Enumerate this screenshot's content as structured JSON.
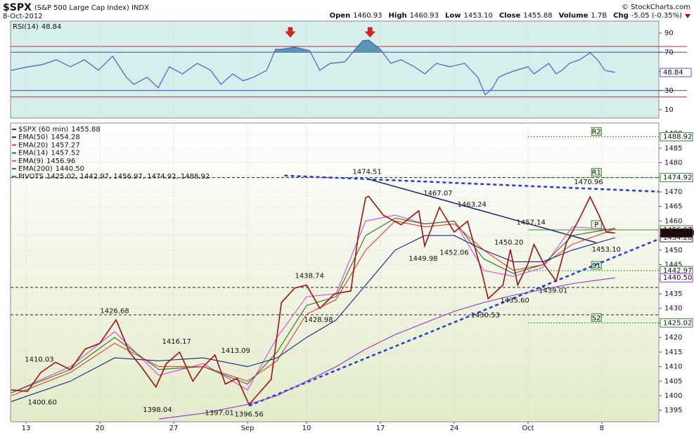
{
  "header": {
    "symbol": "$SPX",
    "name": "(S&P 500 Large Cap Index) INDX",
    "date": "8-Oct-2012",
    "copyright": "© StockCharts.com",
    "quote": [
      {
        "label": "Open",
        "value": "1460.93"
      },
      {
        "label": "High",
        "value": "1460.93"
      },
      {
        "label": "Low",
        "value": "1453.10"
      },
      {
        "label": "Close",
        "value": "1455.88"
      },
      {
        "label": "Volume",
        "value": "1.7B"
      },
      {
        "label": "Chg",
        "value": "-5.05 (-0.35%)"
      }
    ]
  },
  "chart_data": [
    {
      "type": "line",
      "name": "RSI(14)",
      "last_label": "48.84",
      "color": "#4a5fc1",
      "fill_color": "#5b97b3",
      "xlim": [
        -1.05,
        42.86
      ],
      "ylim": [
        1.2,
        102.5
      ],
      "yticks": [
        10,
        30,
        50,
        70,
        90
      ],
      "levels": [
        70,
        30
      ],
      "bands": [
        76,
        23.3
      ],
      "signal_x": [
        17.9,
        23.3
      ],
      "x": [
        -1,
        0.14,
        1.1,
        2.05,
        3,
        3.95,
        4.9,
        5.86,
        6.8,
        7.3,
        8.2,
        8.95,
        9.7,
        10.6,
        11.6,
        12.5,
        13.2,
        14,
        14.7,
        15.4,
        16.3,
        16.9,
        17.3,
        18.2,
        19.2,
        19.9,
        20.6,
        21.6,
        22.3,
        22.8,
        23.2,
        24,
        24.7,
        25.4,
        26.3,
        27,
        27.8,
        28.7,
        29.7,
        30.6,
        31.1,
        31.6,
        32,
        32.5,
        33.2,
        34,
        34.4,
        35.4,
        35.9,
        36.3,
        36.8,
        37.5,
        38.2,
        38.7,
        39.2,
        39.9
      ],
      "values": [
        51.1,
        54.8,
        57,
        62.1,
        54.8,
        62.1,
        51.1,
        65.8,
        43.8,
        36.4,
        43.8,
        32.8,
        54.8,
        47.4,
        58.4,
        51.1,
        36.4,
        47.4,
        40.1,
        43.8,
        51.1,
        73.1,
        73.1,
        75.3,
        71.7,
        51.1,
        58.4,
        59.9,
        73.1,
        81.9,
        82.7,
        73.1,
        58.4,
        62.1,
        54.8,
        47.4,
        58.4,
        54.8,
        58.4,
        43.8,
        25.4,
        32.8,
        43.8,
        47.4,
        51.1,
        54.8,
        47.4,
        58.4,
        47.4,
        51.1,
        58.4,
        62.1,
        69.4,
        62.1,
        51.1,
        48.84
      ]
    },
    {
      "type": "line",
      "xlim": [
        -1.05,
        42.86
      ],
      "ylim": [
        1391.07,
        1493.65
      ],
      "grid": true,
      "xticks": [
        {
          "value": 0,
          "label": "13"
        },
        {
          "value": 5,
          "label": "20"
        },
        {
          "value": 10,
          "label": "27"
        },
        {
          "value": 15,
          "label": "Sep"
        },
        {
          "value": 19,
          "label": "10"
        },
        {
          "value": 24,
          "label": "17"
        },
        {
          "value": 29,
          "label": "24"
        },
        {
          "value": 34,
          "label": "Oct"
        },
        {
          "value": 39,
          "label": "8"
        }
      ],
      "yticks": [
        1395,
        1400,
        1405,
        1410,
        1415,
        1420,
        1425,
        1430,
        1435,
        1440,
        1445,
        1450,
        1455,
        1460,
        1465,
        1470,
        1475,
        1480,
        1485,
        1490
      ],
      "series": [
        {
          "name": "$SPX (60 min)",
          "last_label": "1455.88",
          "color": "#a01010",
          "tag": "fill",
          "x": [
            -1,
            0.1,
            1,
            2,
            3,
            4,
            5,
            6.1,
            7,
            7.8,
            8.8,
            9.5,
            10.4,
            11.3,
            12,
            12.8,
            13.5,
            14.3,
            15.1,
            15.8,
            16.6,
            17.3,
            18.2,
            19,
            19.9,
            20.9,
            22,
            22.5,
            23,
            23.2,
            24.2,
            25.4,
            26.6,
            27,
            28,
            29,
            29.9,
            30.9,
            31.3,
            32.3,
            32.8,
            33.3,
            34,
            34.4,
            35.1,
            35.9,
            36.6,
            37.5,
            38.2,
            38.8,
            39.3,
            39.9
          ],
          "values": [
            1402,
            1401.5,
            1408,
            1411.5,
            1409,
            1416,
            1418,
            1426.1,
            1415,
            1410,
            1403,
            1411,
            1415,
            1405,
            1410,
            1414,
            1404,
            1406,
            1397,
            1401,
            1405.6,
            1432,
            1437,
            1438,
            1430,
            1435,
            1436,
            1455,
            1468,
            1468.5,
            1462,
            1458.7,
            1463.5,
            1451.4,
            1464.7,
            1456.2,
            1459.9,
            1441.8,
            1433.3,
            1438,
            1450.2,
            1438,
            1445.4,
            1452,
            1445,
            1439.4,
            1452.6,
            1461,
            1468.3,
            1462,
            1456.2,
            1455.88
          ]
        },
        {
          "name": "EMA(50)",
          "last_label": "1454.28",
          "color": "#1a237e",
          "tag": "outline",
          "x": [
            -1,
            3,
            6,
            9,
            12,
            15,
            17,
            19,
            21,
            23,
            25,
            27,
            29,
            31,
            33,
            35,
            37,
            39.9
          ],
          "values": [
            1398,
            1405,
            1413,
            1412,
            1413,
            1410,
            1413,
            1420,
            1426,
            1438,
            1450,
            1455,
            1455,
            1450,
            1446,
            1446,
            1450,
            1454.28
          ]
        },
        {
          "name": "EMA(20)",
          "last_label": "1457.27",
          "color": "#e53935",
          "x": [
            -1,
            3,
            6,
            9,
            12,
            15,
            17,
            19,
            21,
            23,
            25,
            27,
            29,
            31,
            33,
            35,
            37,
            39.9
          ],
          "values": [
            1400,
            1408,
            1418,
            1410,
            1410,
            1405,
            1412,
            1428,
            1433,
            1450,
            1460,
            1458,
            1459,
            1450,
            1443,
            1445,
            1452,
            1457.27
          ]
        },
        {
          "name": "EMA(14)",
          "last_label": "1457.52",
          "color": "#1b7a1b",
          "x": [
            -1,
            3,
            6,
            9,
            12,
            15,
            17,
            19,
            21,
            23,
            25,
            27,
            29,
            31,
            33,
            35,
            37,
            39.9
          ],
          "values": [
            1401,
            1409,
            1420,
            1409,
            1410,
            1404,
            1415,
            1431,
            1434,
            1455,
            1461,
            1459,
            1460,
            1447,
            1442,
            1445,
            1455,
            1457.52
          ]
        },
        {
          "name": "EMA(9)",
          "last_label": "1456.96",
          "color": "#e040e0",
          "x": [
            -1,
            3,
            6,
            9,
            12,
            15,
            17,
            19,
            21,
            23,
            25,
            27,
            29,
            31,
            33,
            35,
            37,
            39.9
          ],
          "values": [
            1401,
            1410,
            1422,
            1407,
            1411,
            1402,
            1420,
            1434,
            1435,
            1460,
            1462,
            1459,
            1460,
            1443,
            1441,
            1444,
            1458,
            1456.96
          ]
        },
        {
          "name": "EMA(200)",
          "last_label": "1440.50",
          "color": "#9b30d0",
          "tag": "outline",
          "x": [
            9,
            12,
            15,
            17,
            19,
            21,
            23,
            25,
            27,
            29,
            31,
            33,
            35,
            37,
            39.9
          ],
          "values": [
            1392,
            1394,
            1397,
            1400,
            1405,
            1410,
            1416,
            1421,
            1425,
            1429,
            1432,
            1434.5,
            1436.5,
            1438.5,
            1440.5
          ]
        }
      ],
      "pivots": {
        "name": "PIVOTS",
        "values_label": "1425.02, 1442.97, 1456.97, 1474.92, 1488.92",
        "from": 34,
        "color": "#2e8b2e",
        "levels": [
          {
            "name": "S2",
            "value": 1425.02
          },
          {
            "name": "S1",
            "value": 1442.97
          },
          {
            "name": "P",
            "value": 1456.97
          },
          {
            "name": "R1",
            "value": 1474.92
          },
          {
            "name": "R2",
            "value": 1488.92
          }
        ]
      },
      "levels": [
        1474.92,
        1437.2,
        1427.8
      ],
      "trendlines": [
        {
          "x": [
            15.1,
            42.86
          ],
          "values": [
            1396.56,
            1453.8
          ],
          "color": "#1f3fd6",
          "dash": true
        },
        {
          "x": [
            17.5,
            42.86
          ],
          "values": [
            1475.6,
            1470.1
          ],
          "color": "#1f3fd6",
          "dash": true
        },
        {
          "x": [
            23.1,
            38.6
          ],
          "values": [
            1474.51,
            1452.6
          ],
          "color": "#1a237e",
          "dash": false
        }
      ],
      "annotations": [
        {
          "x": 23.1,
          "y": 1474.51,
          "label": "1474.51",
          "pos": "above"
        },
        {
          "x": 27.9,
          "y": 1467.07,
          "label": "1467.07",
          "pos": "above"
        },
        {
          "x": 30.2,
          "y": 1463.24,
          "label": "1463.24",
          "pos": "above"
        },
        {
          "x": 34.2,
          "y": 1457.14,
          "label": "1457.14",
          "pos": "above"
        },
        {
          "x": 38.1,
          "y": 1470.96,
          "label": "1470.96",
          "pos": "above"
        },
        {
          "x": 39.3,
          "y": 1453.1,
          "label": "1453.10",
          "pos": "below"
        },
        {
          "x": 29,
          "y": 1452.06,
          "label": "1452.06",
          "pos": "below"
        },
        {
          "x": 26.9,
          "y": 1449.98,
          "label": "1449.98",
          "pos": "below"
        },
        {
          "x": 32.7,
          "y": 1450.2,
          "label": "1450.20",
          "pos": "above"
        },
        {
          "x": 35.7,
          "y": 1439.01,
          "label": "1439.01",
          "pos": "below"
        },
        {
          "x": 33.1,
          "y": 1435.6,
          "label": "1435.60",
          "pos": "below"
        },
        {
          "x": 31.1,
          "y": 1430.53,
          "label": "1430.53",
          "pos": "below"
        },
        {
          "x": 19.2,
          "y": 1438.74,
          "label": "1438.74",
          "pos": "above"
        },
        {
          "x": 19.8,
          "y": 1428.98,
          "label": "1428.98",
          "pos": "below"
        },
        {
          "x": 6,
          "y": 1426.68,
          "label": "1426.68",
          "pos": "above"
        },
        {
          "x": 0.9,
          "y": 1410.03,
          "label": "1410.03",
          "pos": "above"
        },
        {
          "x": 1.1,
          "y": 1400.6,
          "label": "1400.60",
          "pos": "below"
        },
        {
          "x": 10.2,
          "y": 1416.17,
          "label": "1416.17",
          "pos": "above"
        },
        {
          "x": 14.2,
          "y": 1413.09,
          "label": "1413.09",
          "pos": "above"
        },
        {
          "x": 8.9,
          "y": 1398.04,
          "label": "1398.04",
          "pos": "below"
        },
        {
          "x": 13.1,
          "y": 1397.01,
          "label": "1397.01",
          "pos": "below"
        },
        {
          "x": 15.1,
          "y": 1396.56,
          "label": "1396.56",
          "pos": "below"
        }
      ]
    }
  ]
}
